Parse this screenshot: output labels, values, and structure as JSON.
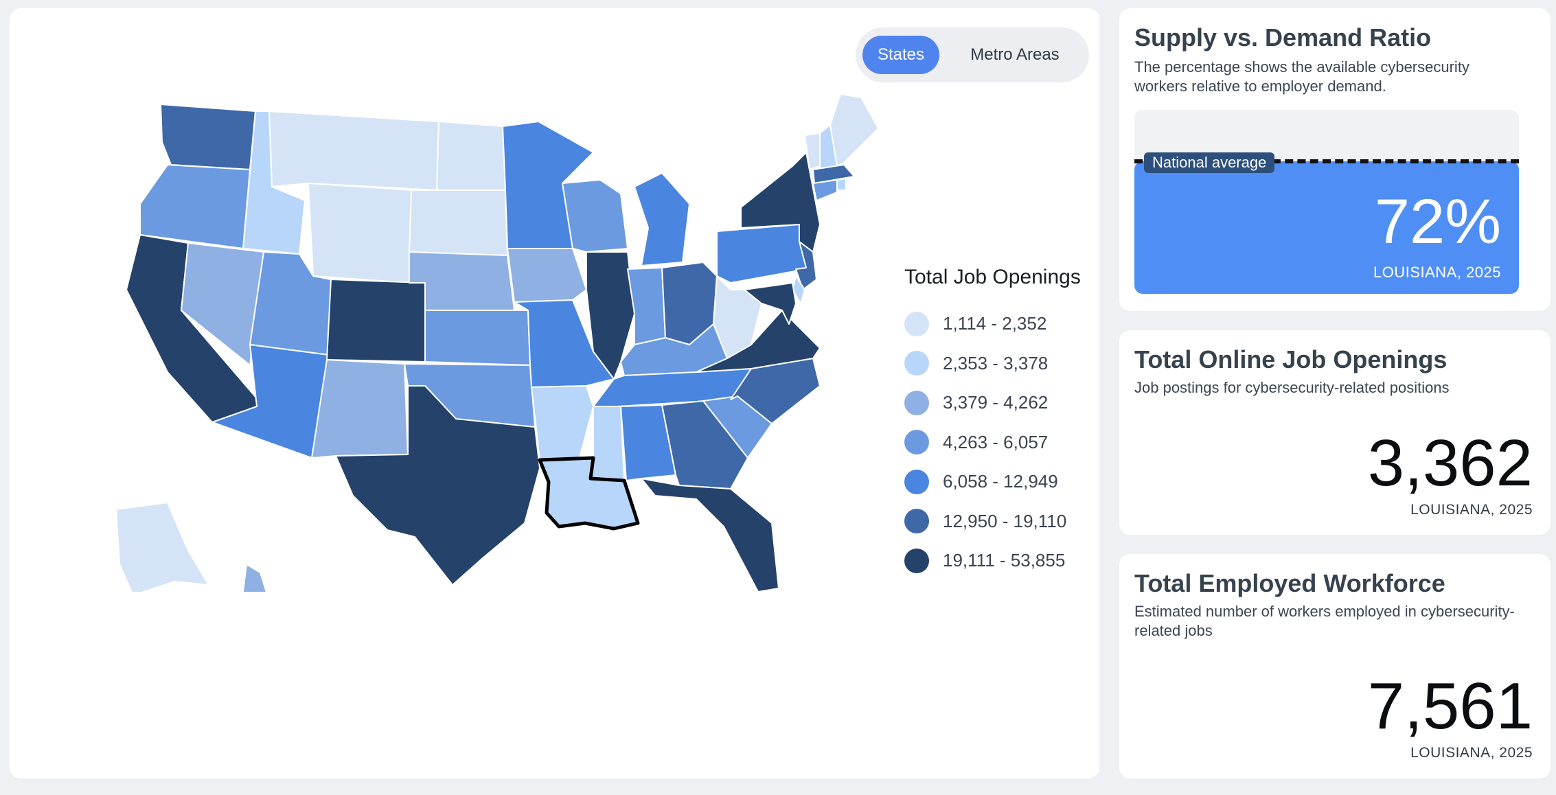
{
  "toggle": {
    "states_label": "States",
    "metro_label": "Metro Areas",
    "active": "States"
  },
  "legend": {
    "title": "Total Job Openings",
    "bins": [
      {
        "label": "1,114 - 2,352",
        "color": "#d4e4f6"
      },
      {
        "label": "2,353 - 3,378",
        "color": "#b8d6fa"
      },
      {
        "label": "3,379 - 4,262",
        "color": "#8fb0e2"
      },
      {
        "label": "4,263 - 6,057",
        "color": "#6b9ae0"
      },
      {
        "label": "6,058 - 12,949",
        "color": "#4a85e0"
      },
      {
        "label": "12,950 - 19,110",
        "color": "#3e68a8"
      },
      {
        "label": "19,111 - 53,855",
        "color": "#25426a"
      }
    ]
  },
  "map": {
    "selected_state": "Louisiana",
    "states": {
      "WA": 5,
      "OR": 3,
      "CA": 6,
      "NV": 2,
      "ID": 1,
      "MT": 0,
      "WY": 0,
      "UT": 3,
      "AZ": 4,
      "CO": 6,
      "NM": 2,
      "ND": 0,
      "SD": 0,
      "NE": 2,
      "KS": 3,
      "OK": 3,
      "TX": 6,
      "MN": 4,
      "IA": 2,
      "MO": 4,
      "AR": 1,
      "LA": 1,
      "WI": 3,
      "IL": 6,
      "MI": 4,
      "IN": 3,
      "OH": 5,
      "KY": 3,
      "TN": 4,
      "MS": 1,
      "AL": 4,
      "GA": 5,
      "FL": 6,
      "SC": 3,
      "NC": 5,
      "VA": 6,
      "WV": 0,
      "PA": 4,
      "NY": 6,
      "VT": 0,
      "NH": 1,
      "ME": 0,
      "MA": 5,
      "CT": 3,
      "RI": 1,
      "NJ": 5,
      "DE": 1,
      "MD": 6,
      "AK": 0,
      "HI": 2
    }
  },
  "ratio": {
    "title": "Supply vs. Demand Ratio",
    "subtitle": "The percentage shows the available cybersecurity workers relative to employer demand.",
    "value": 0.72,
    "value_label": "72%",
    "national_average": 0.73,
    "national_average_label": "National average",
    "caption": "LOUISIANA, 2025"
  },
  "openings": {
    "title": "Total Online Job Openings",
    "subtitle": "Job postings for cybersecurity-related positions",
    "value": "3,362",
    "caption": "LOUISIANA, 2025"
  },
  "workforce": {
    "title": "Total Employed Workforce",
    "subtitle": "Estimated number of workers employed in cybersecurity-related jobs",
    "value": "7,561",
    "caption": "LOUISIANA, 2025"
  }
}
